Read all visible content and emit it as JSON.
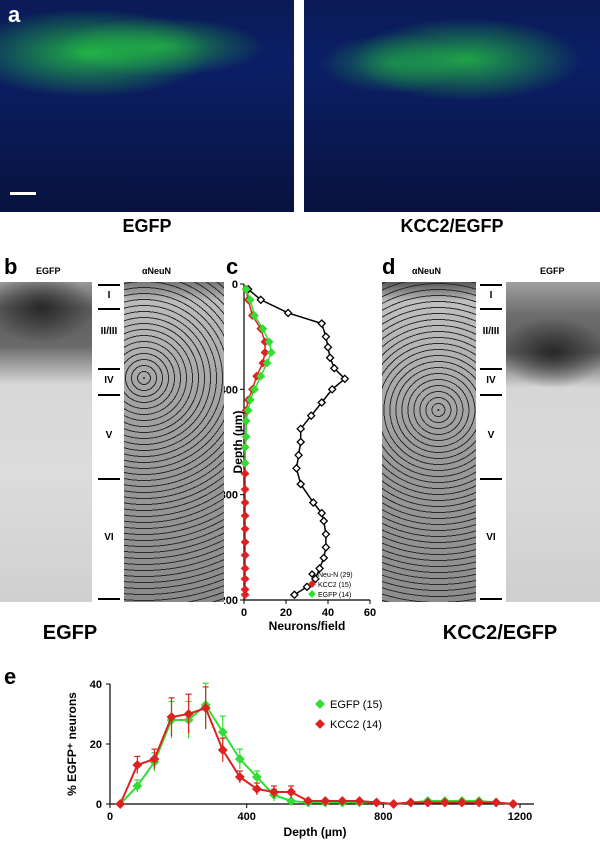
{
  "panels": {
    "a": {
      "letter": "a",
      "left_caption": "EGFP",
      "right_caption": "KCC2/EGFP"
    },
    "b": {
      "letter": "b",
      "left_label": "EGFP",
      "right_label": "αNeuN",
      "caption": "EGFP"
    },
    "c": {
      "letter": "c"
    },
    "d": {
      "letter": "d",
      "left_label": "αNeuN",
      "right_label": "EGFP",
      "caption": "KCC2/EGFP"
    },
    "e": {
      "letter": "e"
    }
  },
  "layers": [
    "I",
    "II/III",
    "IV",
    "V",
    "VI"
  ],
  "colors": {
    "egfp": "#33dd33",
    "kcc2": "#dd2222",
    "neun": "#000000",
    "fluor_bg": "#0b1f66"
  },
  "chart_data": [
    {
      "id": "c",
      "type": "line",
      "xlabel": "Neurons/field",
      "ylabel": "Depth (µm)",
      "xlim": [
        0,
        60
      ],
      "ylim": [
        1200,
        0
      ],
      "xticks": [
        0,
        20,
        40,
        60
      ],
      "yticks": [
        0,
        400,
        800,
        1200
      ],
      "legend_position": "bottom-right",
      "series": [
        {
          "name": "Neu-N (29)",
          "color": "#000000",
          "marker": "open-diamond",
          "x": [
            2,
            8,
            21,
            37,
            39,
            40,
            41,
            43,
            48,
            42,
            37,
            32,
            27,
            27,
            26,
            25,
            27,
            33,
            37,
            38,
            39,
            39,
            38,
            36,
            34,
            30,
            24
          ],
          "y": [
            20,
            60,
            110,
            150,
            200,
            240,
            280,
            320,
            360,
            400,
            450,
            500,
            550,
            600,
            650,
            700,
            760,
            830,
            870,
            900,
            950,
            1000,
            1040,
            1080,
            1120,
            1150,
            1180
          ]
        },
        {
          "name": "KCC2 (15)",
          "color": "#dd2222",
          "marker": "filled-diamond",
          "x": [
            1,
            2,
            4,
            8,
            10,
            10,
            9,
            6,
            4,
            2,
            1,
            1,
            1,
            0.5,
            0.5,
            0.5,
            0.5,
            0.5,
            0.5,
            0.5,
            0.5,
            0.5,
            0.5,
            0.5,
            0.5,
            0.5
          ],
          "y": [
            20,
            60,
            120,
            170,
            220,
            260,
            300,
            350,
            400,
            440,
            480,
            520,
            580,
            620,
            680,
            720,
            780,
            830,
            880,
            930,
            980,
            1030,
            1080,
            1120,
            1160,
            1180
          ]
        },
        {
          "name": "EGFP (14)",
          "color": "#33dd33",
          "marker": "filled-diamond",
          "x": [
            1,
            3,
            5,
            9,
            12,
            13,
            11,
            8,
            5,
            3,
            2,
            1,
            1,
            0.5,
            0.5
          ],
          "y": [
            20,
            60,
            120,
            170,
            220,
            260,
            300,
            350,
            400,
            440,
            480,
            520,
            580,
            620,
            680
          ]
        }
      ]
    },
    {
      "id": "e",
      "type": "line",
      "xlabel": "Depth (µm)",
      "ylabel": "% EGFP⁺ neurons",
      "xlim": [
        0,
        1200
      ],
      "ylim": [
        0,
        40
      ],
      "xticks": [
        0,
        400,
        800,
        1200
      ],
      "yticks": [
        0,
        20,
        40
      ],
      "legend_position": "top-right",
      "series": [
        {
          "name": "EGFP",
          "count": "(15)",
          "color": "#33dd33",
          "x": [
            30,
            80,
            130,
            180,
            230,
            280,
            330,
            380,
            430,
            480,
            530,
            580,
            630,
            680,
            730,
            780,
            830,
            880,
            930,
            980,
            1030,
            1080,
            1130,
            1180
          ],
          "y": [
            0,
            6,
            14,
            28,
            28,
            33,
            24,
            15,
            9,
            3,
            1,
            0.5,
            0.5,
            0.5,
            0.5,
            0.5,
            0,
            0.5,
            1,
            1,
            1,
            1,
            0.5,
            0
          ]
        },
        {
          "name": "KCC2",
          "count": "(14)",
          "color": "#dd2222",
          "x": [
            30,
            80,
            130,
            180,
            230,
            280,
            330,
            380,
            430,
            480,
            530,
            580,
            630,
            680,
            730,
            780,
            830,
            880,
            930,
            980,
            1030,
            1080,
            1130,
            1180
          ],
          "y": [
            0,
            13,
            15,
            29,
            30,
            32,
            18,
            9,
            5,
            4,
            4,
            1,
            1,
            1,
            1,
            0.5,
            0,
            0.5,
            0.5,
            0.5,
            0.5,
            0.5,
            0.5,
            0
          ]
        }
      ]
    }
  ]
}
